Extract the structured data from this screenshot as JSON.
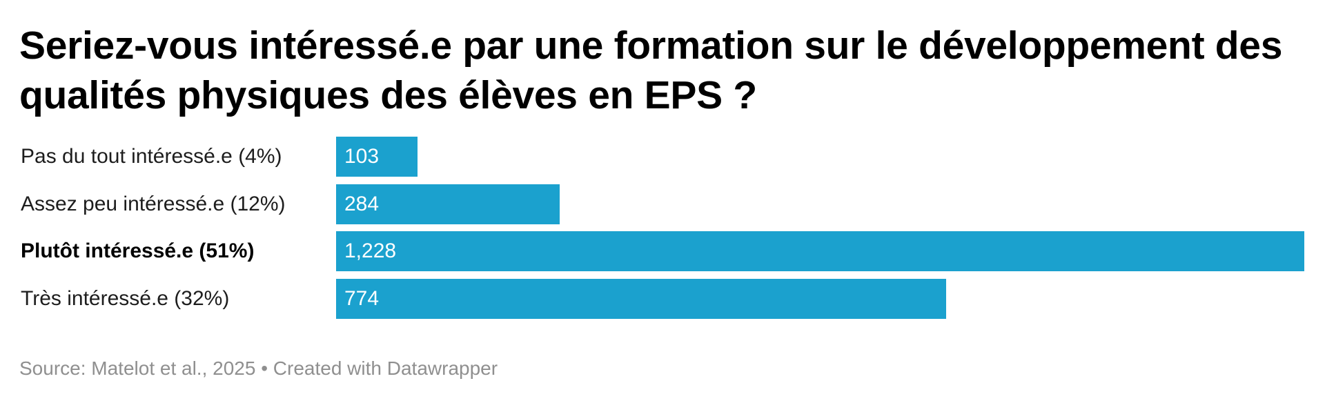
{
  "chart_data": {
    "type": "bar",
    "orientation": "horizontal",
    "title": "Seriez-vous intéressé.e par une formation sur le développement des qualités physiques des élèves en EPS ?",
    "categories": [
      "Pas du tout intéressé.e (4%)",
      "Assez peu intéressé.e (12%)",
      "Plutôt intéressé.e (51%)",
      "Très intéressé.e (32%)"
    ],
    "values": [
      103,
      284,
      1228,
      774
    ],
    "value_labels": [
      "103",
      "284",
      "1,228",
      "774"
    ],
    "highlighted_category": "Plutôt intéressé.e (51%)",
    "bar_color": "#1ba1ce",
    "value_label_color": "#ffffff",
    "xlim": [
      0,
      1228
    ],
    "grid": false,
    "legend": "none"
  },
  "footer": {
    "source": "Source: Matelot et al., 2025 • Created with Datawrapper"
  }
}
